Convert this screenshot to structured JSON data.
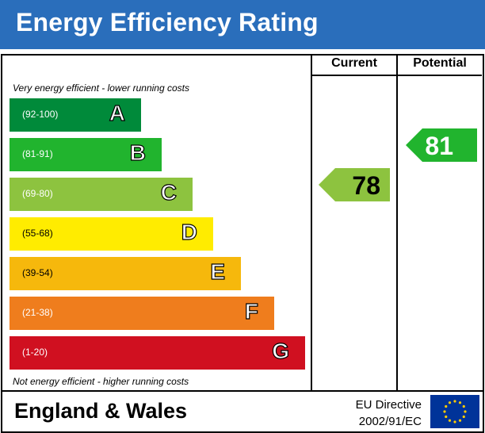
{
  "header": {
    "title": "Energy Efficiency Rating",
    "background": "#2a6ebb"
  },
  "columns": {
    "current": "Current",
    "potential": "Potential"
  },
  "notes": {
    "top": "Very energy efficient - lower running costs",
    "bottom": "Not energy efficient - higher running costs"
  },
  "chart_data": {
    "type": "bar",
    "categories": [
      "A",
      "B",
      "C",
      "D",
      "E",
      "F",
      "G"
    ],
    "ranges": [
      "(92-100)",
      "(81-91)",
      "(69-80)",
      "(55-68)",
      "(39-54)",
      "(21-38)",
      "(1-20)"
    ],
    "band_min": [
      92,
      81,
      69,
      55,
      39,
      21,
      1
    ],
    "band_max": [
      100,
      91,
      80,
      68,
      54,
      38,
      20
    ],
    "colors": [
      "#008a3a",
      "#21b42e",
      "#8dc33f",
      "#ffec00",
      "#f6b80c",
      "#ef7d1d",
      "#d01020"
    ],
    "range_text_colors": [
      "#ffffff",
      "#ffffff",
      "#ffffff",
      "#000000",
      "#000000",
      "#ffffff",
      "#ffffff"
    ],
    "current": {
      "value": 78,
      "band": "C",
      "color": "#8dc33f"
    },
    "potential": {
      "value": 81,
      "band": "B",
      "color": "#21b42e"
    }
  },
  "footer": {
    "region": "England & Wales",
    "directive_line1": "EU Directive",
    "directive_line2": "2002/91/EC",
    "flag_color": "#003399",
    "star_color": "#ffcc00"
  }
}
